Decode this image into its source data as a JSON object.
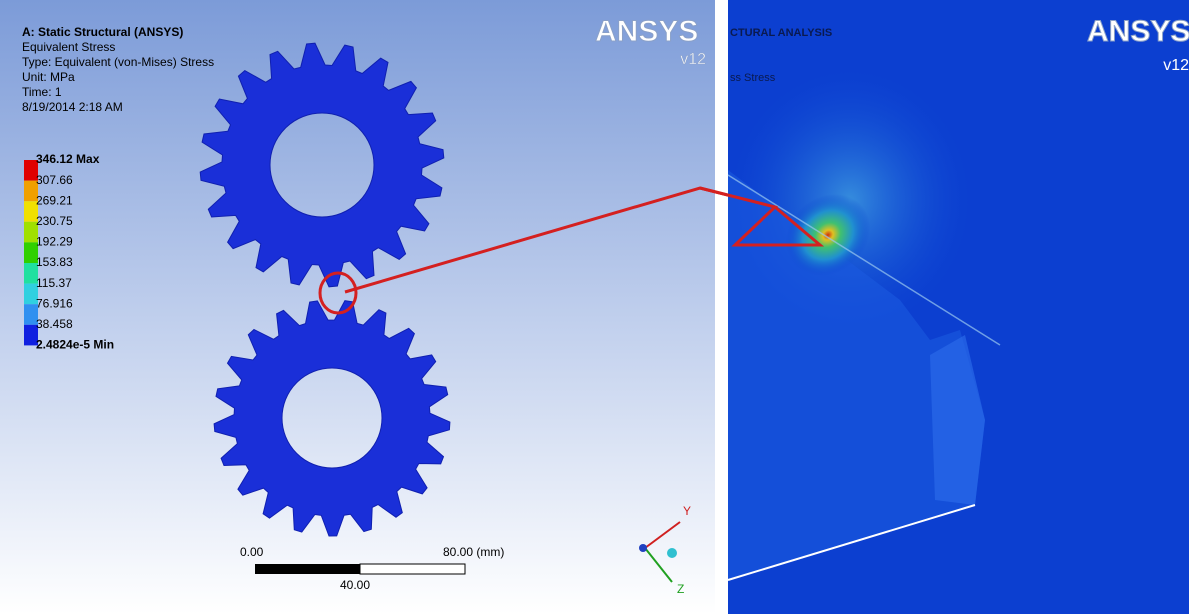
{
  "left_panel": {
    "header": [
      "A: Static Structural (ANSYS)",
      "Equivalent Stress",
      "Type: Equivalent (von-Mises) Stress",
      "Unit: MPa",
      "Time: 1",
      "8/19/2014 2:18 AM"
    ],
    "legend": [
      "346.12 Max",
      "307.66",
      "269.21",
      "230.75",
      "192.29",
      "153.83",
      "115.37",
      "76.916",
      "38.458",
      "2.4824e-5 Min"
    ],
    "logo": {
      "name": "ANSYS",
      "version": "v12"
    },
    "scale_bar": {
      "start": "0.00",
      "end": "80.00 (mm)",
      "middle": "40.00"
    },
    "triad": {
      "y": "Y",
      "z": "Z"
    }
  },
  "right_panel": {
    "header": [
      "CTURAL ANALYSIS",
      "ss Stress"
    ],
    "logo": {
      "name": "ANSYS",
      "version": "v12"
    }
  }
}
